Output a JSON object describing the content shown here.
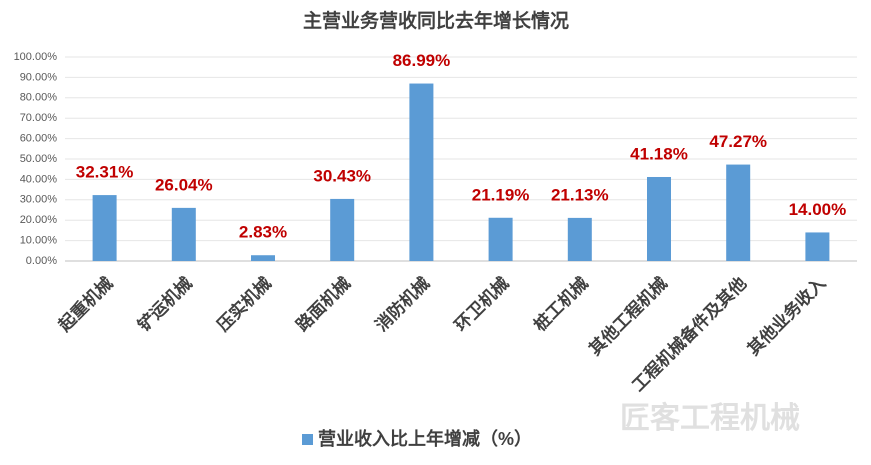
{
  "chart_data": {
    "type": "bar",
    "title": "主营业务营收同比去年增长情况",
    "categories": [
      "起重机械",
      "铲运机械",
      "压实机械",
      "路面机械",
      "消防机械",
      "环卫机械",
      "桩工机械",
      "其他工程机械",
      "工程机械备件及其他",
      "其他业务收入"
    ],
    "series": [
      {
        "name": "营业收入比上年增减（%）",
        "color": "#5b9bd5",
        "values": [
          32.31,
          26.04,
          2.83,
          30.43,
          86.99,
          21.19,
          21.13,
          41.18,
          47.27,
          14.0
        ],
        "value_labels": [
          "32.31%",
          "26.04%",
          "2.83%",
          "30.43%",
          "86.99%",
          "21.19%",
          "21.13%",
          "41.18%",
          "47.27%",
          "14.00%"
        ]
      }
    ],
    "ylim": [
      0,
      100
    ],
    "yticks": [
      {
        "value": 0,
        "label": "0.00%"
      },
      {
        "value": 10,
        "label": "10.00%"
      },
      {
        "value": 20,
        "label": "20.00%"
      },
      {
        "value": 30,
        "label": "30.00%"
      },
      {
        "value": 40,
        "label": "40.00%"
      },
      {
        "value": 50,
        "label": "50.00%"
      },
      {
        "value": 60,
        "label": "60.00%"
      },
      {
        "value": 70,
        "label": "70.00%"
      },
      {
        "value": 80,
        "label": "80.00%"
      },
      {
        "value": 90,
        "label": "90.00%"
      },
      {
        "value": 100,
        "label": "100.00%"
      }
    ],
    "grid": true,
    "legend": "bottom",
    "value_label_color": "#c00000",
    "watermark": "匠客工程机械"
  }
}
